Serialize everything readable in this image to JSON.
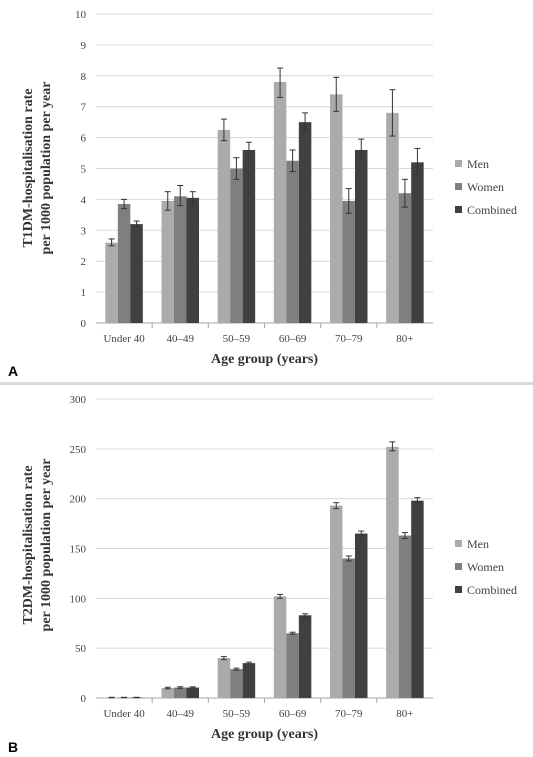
{
  "colors": {
    "men": "#ababab",
    "women": "#7f7f7f",
    "combined": "#404040",
    "grid": "#d9d9d9",
    "axis": "#a6a6a6",
    "error": "#333333"
  },
  "chart_data": [
    {
      "panel_label": "A",
      "type": "bar",
      "categories": [
        "Under 40",
        "40–49",
        "50–59",
        "60–69",
        "70–79",
        "80+"
      ],
      "series": [
        {
          "name": "Men",
          "values": [
            2.6,
            3.95,
            6.25,
            7.8,
            7.4,
            6.8
          ],
          "error_low": [
            2.5,
            3.65,
            5.9,
            7.3,
            6.85,
            6.05
          ],
          "error_high": [
            2.72,
            4.25,
            6.6,
            8.25,
            7.95,
            7.55
          ]
        },
        {
          "name": "Women",
          "values": [
            3.85,
            4.1,
            5.0,
            5.25,
            3.95,
            4.2
          ],
          "error_low": [
            3.7,
            3.8,
            4.65,
            4.9,
            3.55,
            3.75
          ],
          "error_high": [
            4.0,
            4.45,
            5.35,
            5.6,
            4.35,
            4.65
          ]
        },
        {
          "name": "Combined",
          "values": [
            3.2,
            4.05,
            5.6,
            6.5,
            5.6,
            5.2
          ],
          "error_low": [
            3.1,
            3.85,
            5.35,
            6.2,
            5.3,
            4.8
          ],
          "error_high": [
            3.3,
            4.25,
            5.85,
            6.8,
            5.95,
            5.65
          ]
        }
      ],
      "ylim": [
        0,
        10
      ],
      "yticks": [
        "0",
        "1",
        "2",
        "3",
        "4",
        "5",
        "6",
        "7",
        "8",
        "9",
        "10"
      ],
      "xlabel": "Age group (years)",
      "ylabel_lines": [
        "T1DM-hospitalisation rate",
        "per 1000 population  per year"
      ],
      "legend": [
        "Men",
        "Women",
        "Combined"
      ],
      "grid": true,
      "legend_position": "right"
    },
    {
      "panel_label": "B",
      "type": "bar",
      "categories": [
        "Under 40",
        "40–49",
        "50–59",
        "60–69",
        "70–79",
        "80+"
      ],
      "series": [
        {
          "name": "Men",
          "values": [
            0.5,
            10,
            40,
            102,
            193,
            252
          ],
          "error_low": [
            0.3,
            9.2,
            38.5,
            100,
            190,
            248
          ],
          "error_high": [
            0.7,
            10.8,
            41.5,
            104,
            196,
            257
          ]
        },
        {
          "name": "Women",
          "values": [
            0.5,
            10.5,
            29,
            65,
            140,
            163
          ],
          "error_low": [
            0.3,
            9.7,
            28,
            64,
            137.5,
            160
          ],
          "error_high": [
            0.7,
            11.3,
            30,
            66,
            142.5,
            166
          ]
        },
        {
          "name": "Combined",
          "values": [
            0.5,
            10.5,
            35,
            83,
            165,
            198
          ],
          "error_low": [
            0.3,
            9.8,
            34,
            81.5,
            162.5,
            196
          ],
          "error_high": [
            0.7,
            11.2,
            36,
            84.5,
            167.5,
            201
          ]
        }
      ],
      "ylim": [
        0,
        300
      ],
      "yticks": [
        "0",
        "50",
        "100",
        "150",
        "200",
        "250",
        "300"
      ],
      "xlabel": "Age group (years)",
      "ylabel_lines": [
        "T2DM-hospitalisation rate",
        "per 1000 population  per year"
      ],
      "legend": [
        "Men",
        "Women",
        "Combined"
      ],
      "grid": true,
      "legend_position": "right"
    }
  ]
}
